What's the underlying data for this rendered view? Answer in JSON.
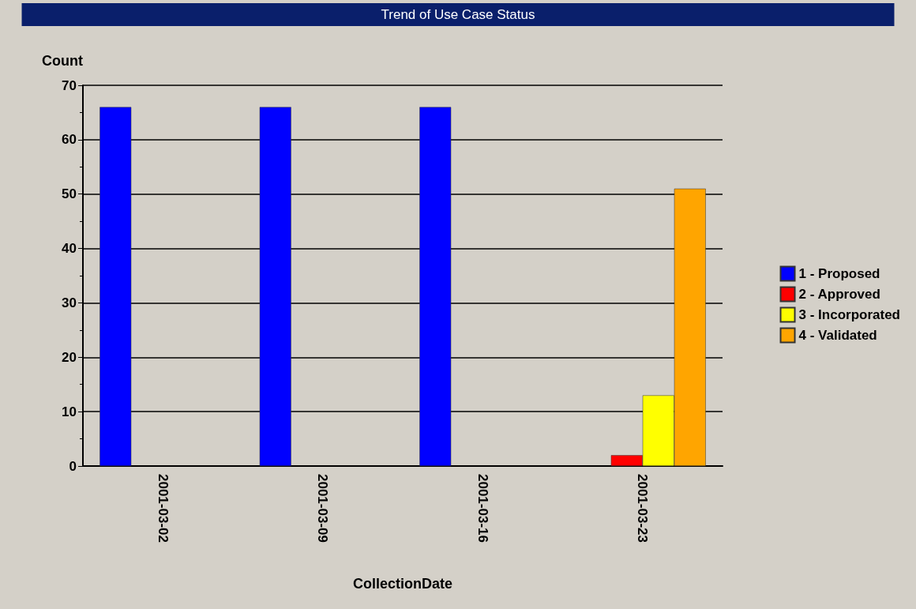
{
  "chart_data": {
    "type": "bar",
    "title": "Trend of Use Case Status",
    "xlabel": "CollectionDate",
    "ylabel": "Count",
    "categories": [
      "2001-03-02",
      "2001-03-09",
      "2001-03-16",
      "2001-03-23"
    ],
    "series": [
      {
        "name": "1 - Proposed",
        "color": "#0000ff",
        "values": [
          66,
          66,
          66,
          null
        ]
      },
      {
        "name": "2 - Approved",
        "color": "#ff0000",
        "values": [
          null,
          null,
          null,
          2
        ]
      },
      {
        "name": "3 - Incorporated",
        "color": "#ffff00",
        "values": [
          null,
          null,
          null,
          13
        ]
      },
      {
        "name": "4 - Validated",
        "color": "#ffa500",
        "values": [
          null,
          null,
          null,
          51
        ]
      }
    ],
    "ylim": [
      0,
      70
    ],
    "yticks": [
      0,
      10,
      20,
      30,
      40,
      50,
      60,
      70
    ],
    "grid": "y",
    "legend": "right"
  }
}
